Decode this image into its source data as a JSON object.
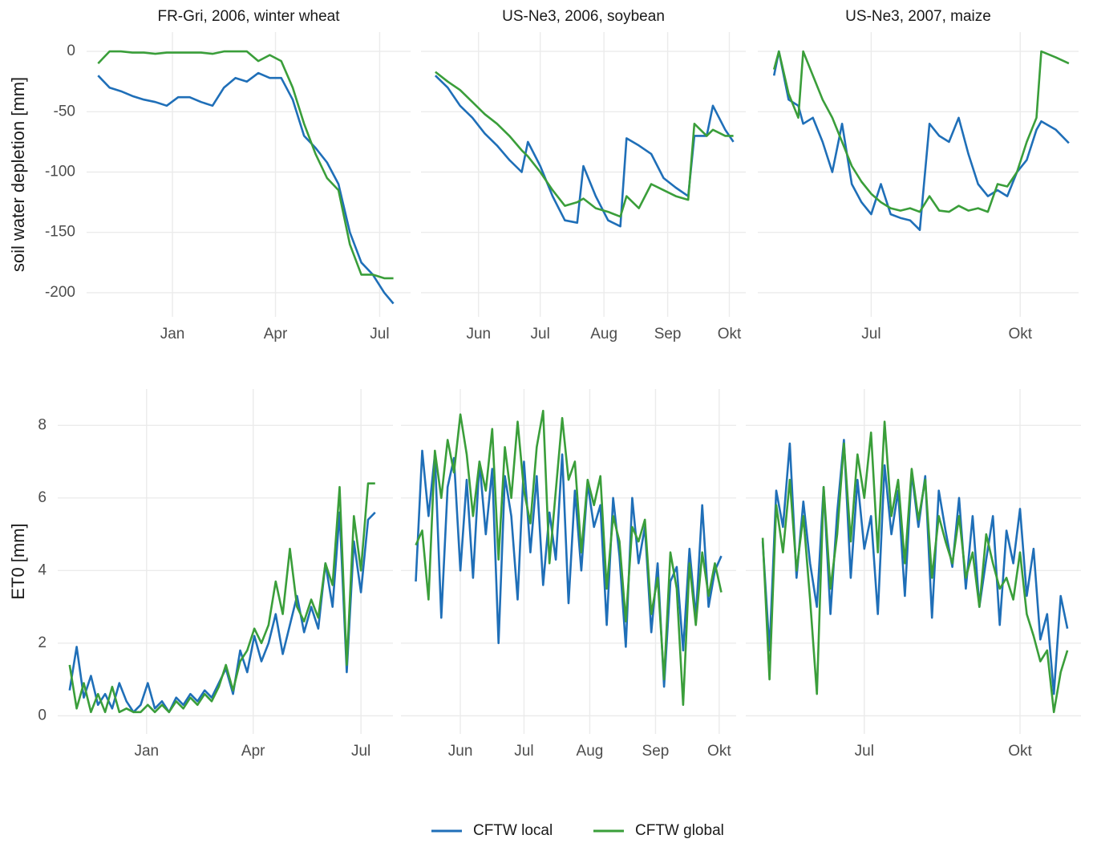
{
  "chart_data": [
    {
      "type": "line",
      "title": "FR-Gri, 2006, winter wheat",
      "ylabel": "soil water depletion [mm]",
      "x": [
        -65,
        -55,
        -45,
        -35,
        -25,
        -15,
        -5,
        5,
        15,
        25,
        35,
        45,
        55,
        65,
        75,
        85,
        95,
        105,
        115,
        125,
        135,
        145,
        155,
        165,
        175,
        185,
        193
      ],
      "xlim": [
        -75,
        208
      ],
      "xticks": [
        {
          "value": 0,
          "label": "Jan"
        },
        {
          "value": 90,
          "label": "Apr"
        },
        {
          "value": 181,
          "label": "Jul"
        }
      ],
      "ylim": [
        -220,
        16
      ],
      "yticks": [
        0,
        -50,
        -100,
        -150,
        -200
      ],
      "grid": true,
      "series": [
        {
          "name": "CFTW local",
          "color": "#1f6fb8",
          "values": [
            -20,
            -30,
            -33,
            -37,
            -40,
            -42,
            -45,
            -38,
            -38,
            -42,
            -45,
            -30,
            -22,
            -25,
            -18,
            -22,
            -22,
            -40,
            -70,
            -80,
            -92,
            -110,
            -150,
            -175,
            -185,
            -200,
            -209
          ]
        },
        {
          "name": "CFTW global",
          "color": "#3a9e3a",
          "values": [
            -10,
            0,
            0,
            -1,
            -1,
            -2,
            -1,
            -1,
            -1,
            -1,
            -2,
            0,
            0,
            0,
            -8,
            -3,
            -8,
            -30,
            -60,
            -85,
            -105,
            -115,
            -160,
            -185,
            -185,
            -188,
            -188
          ]
        }
      ]
    },
    {
      "type": "line",
      "title": "US-Ne3, 2006, soybean",
      "x": [
        131,
        137,
        143,
        149,
        155,
        161,
        167,
        173,
        176,
        182,
        188,
        194,
        200,
        203,
        209,
        215,
        221,
        224,
        230,
        236,
        242,
        248,
        254,
        257,
        263,
        266,
        272,
        276
      ],
      "xlim": [
        124,
        282
      ],
      "xticks": [
        {
          "value": 152,
          "label": "Jun"
        },
        {
          "value": 182,
          "label": "Jul"
        },
        {
          "value": 213,
          "label": "Aug"
        },
        {
          "value": 244,
          "label": "Sep"
        },
        {
          "value": 274,
          "label": "Okt"
        }
      ],
      "ylim": [
        -220,
        16
      ],
      "yticks": [
        0,
        -50,
        -100,
        -150,
        -200
      ],
      "grid": true,
      "series": [
        {
          "color": "#1f6fb8",
          "values": [
            -20,
            -30,
            -45,
            -55,
            -68,
            -78,
            -90,
            -100,
            -75,
            -95,
            -120,
            -140,
            -142,
            -95,
            -120,
            -140,
            -145,
            -72,
            -78,
            -85,
            -105,
            -113,
            -120,
            -70,
            -70,
            -45,
            -65,
            -75
          ]
        },
        {
          "color": "#3a9e3a",
          "values": [
            -17,
            -25,
            -32,
            -42,
            -52,
            -60,
            -70,
            -82,
            -87,
            -100,
            -115,
            -128,
            -125,
            -122,
            -130,
            -133,
            -137,
            -120,
            -130,
            -110,
            -115,
            -120,
            -123,
            -60,
            -70,
            -65,
            -70,
            -70
          ]
        }
      ]
    },
    {
      "type": "line",
      "title": "US-Ne3, 2007, maize",
      "x": [
        122,
        125,
        131,
        137,
        140,
        146,
        152,
        158,
        164,
        170,
        176,
        182,
        188,
        194,
        200,
        206,
        212,
        218,
        224,
        230,
        236,
        242,
        248,
        254,
        260,
        266,
        272,
        278,
        284,
        287,
        296,
        304
      ],
      "xlim": [
        112,
        310
      ],
      "xticks": [
        {
          "value": 182,
          "label": "Jul"
        },
        {
          "value": 274,
          "label": "Okt"
        }
      ],
      "ylim": [
        -220,
        16
      ],
      "yticks": [
        0,
        -50,
        -100,
        -150,
        -200
      ],
      "grid": true,
      "series": [
        {
          "color": "#1f6fb8",
          "values": [
            -20,
            0,
            -40,
            -45,
            -60,
            -55,
            -75,
            -100,
            -60,
            -110,
            -125,
            -135,
            -110,
            -135,
            -138,
            -140,
            -148,
            -60,
            -70,
            -75,
            -55,
            -85,
            -110,
            -120,
            -115,
            -120,
            -100,
            -90,
            -65,
            -58,
            -65,
            -76
          ]
        },
        {
          "color": "#3a9e3a",
          "values": [
            -15,
            0,
            -35,
            -55,
            0,
            -20,
            -40,
            -55,
            -75,
            -95,
            -108,
            -118,
            -125,
            -130,
            -132,
            -130,
            -133,
            -120,
            -132,
            -133,
            -128,
            -132,
            -130,
            -133,
            -110,
            -112,
            -100,
            -75,
            -55,
            0,
            -5,
            -10
          ]
        }
      ]
    },
    {
      "type": "line",
      "ylabel": "ET0 [mm]",
      "x": [
        -65,
        -59,
        -53,
        -47,
        -41,
        -35,
        -29,
        -23,
        -17,
        -11,
        -5,
        1,
        7,
        13,
        19,
        25,
        31,
        37,
        43,
        49,
        55,
        61,
        67,
        73,
        79,
        85,
        91,
        97,
        103,
        109,
        115,
        121,
        127,
        133,
        139,
        145,
        151,
        157,
        163,
        169,
        175,
        181,
        187,
        193
      ],
      "xlim": [
        -75,
        208
      ],
      "xticks": [
        {
          "value": 0,
          "label": "Jan"
        },
        {
          "value": 90,
          "label": "Apr"
        },
        {
          "value": 181,
          "label": "Jul"
        }
      ],
      "ylim": [
        -0.5,
        9
      ],
      "yticks": [
        0,
        2,
        4,
        6,
        8
      ],
      "grid": true,
      "series": [
        {
          "color": "#1f6fb8",
          "values": [
            0.7,
            1.9,
            0.5,
            1.1,
            0.3,
            0.6,
            0.2,
            0.9,
            0.4,
            0.1,
            0.3,
            0.9,
            0.2,
            0.4,
            0.1,
            0.5,
            0.3,
            0.6,
            0.4,
            0.7,
            0.5,
            0.9,
            1.3,
            0.6,
            1.8,
            1.2,
            2.2,
            1.5,
            2.0,
            2.8,
            1.7,
            2.5,
            3.3,
            2.3,
            3.0,
            2.4,
            4.2,
            3.0,
            5.6,
            1.2,
            4.8,
            3.4,
            5.4,
            5.6
          ]
        },
        {
          "color": "#3a9e3a",
          "values": [
            1.4,
            0.2,
            0.9,
            0.1,
            0.6,
            0.1,
            0.8,
            0.1,
            0.2,
            0.1,
            0.1,
            0.3,
            0.1,
            0.3,
            0.1,
            0.4,
            0.2,
            0.5,
            0.3,
            0.6,
            0.4,
            0.8,
            1.4,
            0.7,
            1.5,
            1.8,
            2.4,
            2.0,
            2.5,
            3.7,
            2.8,
            4.6,
            3.0,
            2.6,
            3.2,
            2.7,
            4.2,
            3.6,
            6.3,
            1.4,
            5.5,
            4.0,
            6.4,
            6.4
          ]
        }
      ]
    },
    {
      "type": "line",
      "x": [
        131,
        134,
        137,
        140,
        143,
        146,
        149,
        152,
        155,
        158,
        161,
        164,
        167,
        170,
        173,
        176,
        179,
        182,
        185,
        188,
        191,
        194,
        197,
        200,
        203,
        206,
        209,
        212,
        215,
        218,
        221,
        224,
        227,
        230,
        233,
        236,
        239,
        242,
        245,
        248,
        251,
        254,
        257,
        260,
        263,
        266,
        269,
        272,
        275
      ],
      "xlim": [
        124,
        282
      ],
      "xticks": [
        {
          "value": 152,
          "label": "Jun"
        },
        {
          "value": 182,
          "label": "Jul"
        },
        {
          "value": 213,
          "label": "Aug"
        },
        {
          "value": 244,
          "label": "Sep"
        },
        {
          "value": 274,
          "label": "Okt"
        }
      ],
      "ylim": [
        -0.5,
        9
      ],
      "yticks": [
        0,
        2,
        4,
        6,
        8
      ],
      "grid": true,
      "series": [
        {
          "color": "#1f6fb8",
          "values": [
            3.7,
            7.3,
            5.5,
            7.2,
            2.7,
            6.3,
            7.1,
            4.0,
            6.5,
            3.8,
            7.0,
            5.0,
            6.8,
            2.0,
            6.6,
            5.5,
            3.2,
            7.0,
            4.5,
            6.6,
            3.6,
            5.6,
            4.3,
            7.2,
            3.1,
            6.2,
            4.0,
            6.4,
            5.2,
            5.8,
            2.5,
            6.0,
            4.4,
            1.9,
            6.0,
            4.2,
            5.2,
            2.3,
            4.2,
            0.8,
            3.7,
            4.1,
            1.8,
            4.6,
            2.7,
            5.8,
            3.0,
            4.0,
            4.4
          ]
        },
        {
          "color": "#3a9e3a",
          "values": [
            4.7,
            5.1,
            3.2,
            7.3,
            6.0,
            7.6,
            6.7,
            8.3,
            7.2,
            5.5,
            7.0,
            6.2,
            7.9,
            4.3,
            7.4,
            6.0,
            8.1,
            6.2,
            5.3,
            7.4,
            8.4,
            4.2,
            6.2,
            8.2,
            6.5,
            7.0,
            4.5,
            6.5,
            5.8,
            6.6,
            3.5,
            5.5,
            4.8,
            2.6,
            5.2,
            4.8,
            5.4,
            2.8,
            3.8,
            1.0,
            4.5,
            3.5,
            0.3,
            4.2,
            2.5,
            4.5,
            3.3,
            4.2,
            3.4
          ]
        }
      ]
    },
    {
      "type": "line",
      "x": [
        122,
        126,
        130,
        134,
        138,
        142,
        146,
        150,
        154,
        158,
        162,
        166,
        170,
        174,
        178,
        182,
        186,
        190,
        194,
        198,
        202,
        206,
        210,
        214,
        218,
        222,
        226,
        230,
        234,
        238,
        242,
        246,
        250,
        254,
        258,
        262,
        266,
        270,
        274,
        278,
        282,
        286,
        290,
        294,
        298,
        302
      ],
      "xlim": [
        112,
        310
      ],
      "xticks": [
        {
          "value": 182,
          "label": "Jul"
        },
        {
          "value": 274,
          "label": "Okt"
        }
      ],
      "ylim": [
        -0.5,
        9
      ],
      "yticks": [
        0,
        2,
        4,
        6,
        8
      ],
      "grid": true,
      "series": [
        {
          "color": "#1f6fb8",
          "values": [
            4.8,
            1.8,
            6.2,
            5.2,
            7.5,
            3.8,
            5.9,
            4.2,
            3.0,
            6.3,
            2.8,
            5.6,
            7.6,
            3.8,
            6.5,
            4.6,
            5.5,
            2.8,
            6.9,
            5.0,
            6.2,
            3.3,
            6.7,
            5.2,
            6.6,
            2.7,
            6.2,
            5.1,
            4.1,
            6.0,
            3.5,
            5.5,
            3.0,
            4.3,
            5.5,
            2.5,
            5.1,
            4.2,
            5.7,
            3.3,
            4.6,
            2.1,
            2.8,
            0.6,
            3.3,
            2.4
          ]
        },
        {
          "color": "#3a9e3a",
          "values": [
            4.9,
            1.0,
            5.8,
            4.5,
            6.5,
            4.0,
            5.5,
            3.2,
            0.6,
            6.3,
            3.5,
            5.0,
            7.5,
            4.8,
            7.2,
            6.0,
            7.8,
            4.5,
            8.1,
            5.5,
            6.5,
            4.2,
            6.8,
            5.4,
            6.5,
            3.8,
            5.5,
            4.8,
            4.2,
            5.5,
            3.8,
            4.5,
            3.0,
            5.0,
            4.2,
            3.5,
            3.8,
            3.2,
            4.5,
            2.8,
            2.2,
            1.5,
            1.8,
            0.1,
            1.2,
            1.8
          ]
        }
      ]
    }
  ]
}
